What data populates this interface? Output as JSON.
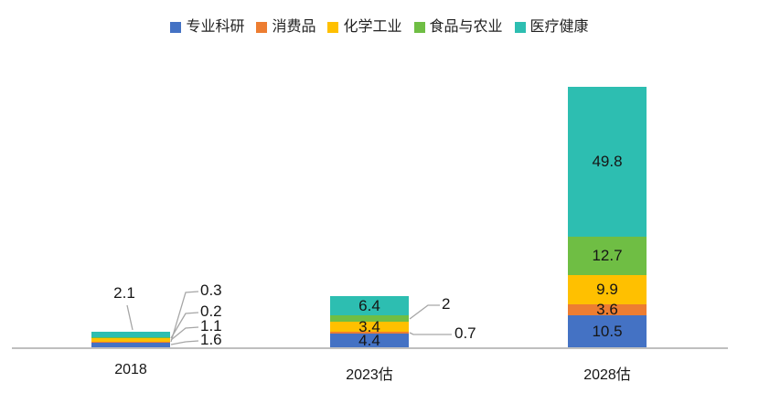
{
  "chart_data": {
    "type": "bar",
    "stacked": true,
    "title": "",
    "xlabel": "",
    "ylabel": "",
    "grid": false,
    "legend_position": "top",
    "categories": [
      "2018",
      "2023估",
      "2028估"
    ],
    "series": [
      {
        "name": "专业科研",
        "color": "#4472C4",
        "values": [
          1.6,
          4.4,
          10.5
        ]
      },
      {
        "name": "消费品",
        "color": "#ED7D31",
        "values": [
          0.3,
          0.7,
          3.6
        ]
      },
      {
        "name": "化学工业",
        "color": "#FFC000",
        "values": [
          1.1,
          3.4,
          9.9
        ]
      },
      {
        "name": "食品与农业",
        "color": "#6FBE44",
        "values": [
          0.2,
          2,
          12.7
        ]
      },
      {
        "name": "医疗健康",
        "color": "#2DBEB1",
        "values": [
          2.1,
          6.4,
          49.8
        ]
      }
    ],
    "totals": [
      5.3,
      16.9,
      86.5
    ],
    "ylim": [
      0,
      86.5
    ],
    "axis_line_color": "#BFBFBF",
    "leader_line_color": "#A6A6A6",
    "label_color": "#161616"
  }
}
